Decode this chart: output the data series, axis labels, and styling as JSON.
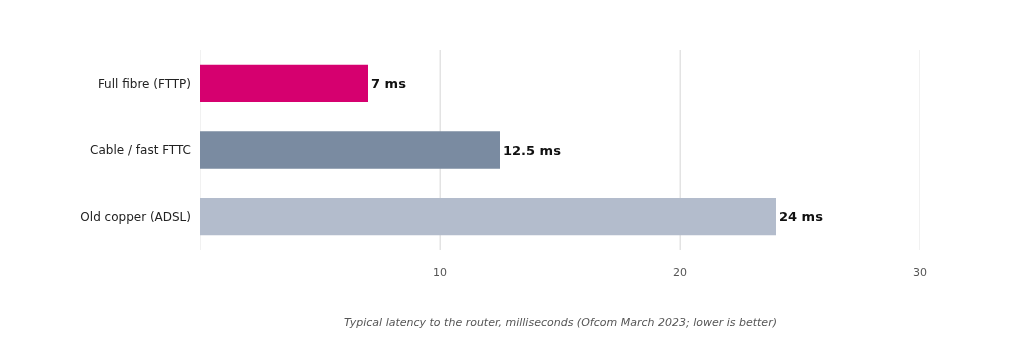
{
  "chart_data": {
    "type": "bar",
    "orientation": "horizontal",
    "categories": [
      "Full fibre (FTTP)",
      "Cable / fast FTTC",
      "Old copper (ADSL)"
    ],
    "values": [
      7,
      12.5,
      24
    ],
    "colors": [
      "#d6006f",
      "#7a8ba1",
      "#b3bccc"
    ],
    "value_labels": [
      "7 ms",
      "12.5 ms",
      "24 ms"
    ],
    "xlim": [
      0,
      30
    ],
    "xticks": [
      {
        "value": 0,
        "label": null
      },
      10,
      20,
      30
    ],
    "grid": "x",
    "legend": false,
    "annotations": [
      "Typical latency to the router, milliseconds (Ofcom March 2023; lower is better)"
    ]
  }
}
